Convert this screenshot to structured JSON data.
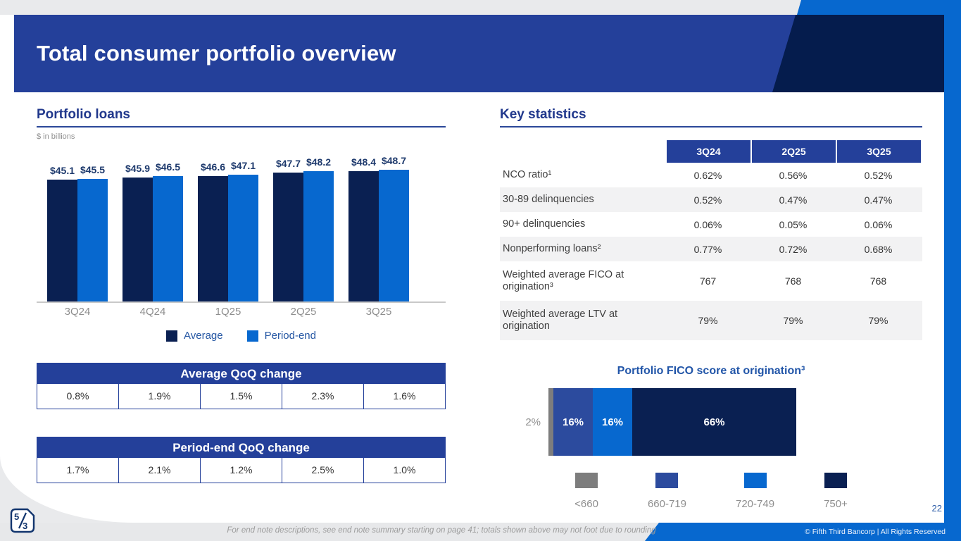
{
  "slide": {
    "title": "Total consumer portfolio overview",
    "page_number": "22"
  },
  "portfolio_loans": {
    "heading": "Portfolio loans",
    "units_note": "$ in billions"
  },
  "key_statistics": {
    "heading": "Key statistics",
    "columns": [
      "3Q24",
      "2Q25",
      "3Q25"
    ],
    "rows": [
      {
        "label": "NCO ratio¹",
        "values": [
          "0.62%",
          "0.56%",
          "0.52%"
        ]
      },
      {
        "label": "30-89 delinquencies",
        "values": [
          "0.52%",
          "0.47%",
          "0.47%"
        ]
      },
      {
        "label": "90+ delinquencies",
        "values": [
          "0.06%",
          "0.05%",
          "0.06%"
        ]
      },
      {
        "label": "Nonperforming loans²",
        "values": [
          "0.77%",
          "0.72%",
          "0.68%"
        ]
      },
      {
        "label": "Weighted average FICO at origination³",
        "values": [
          "767",
          "768",
          "768"
        ]
      },
      {
        "label": "Weighted average LTV at origination",
        "values": [
          "79%",
          "79%",
          "79%"
        ]
      }
    ]
  },
  "qoq_tables": {
    "average": {
      "title": "Average QoQ change",
      "values": [
        "0.8%",
        "1.9%",
        "1.5%",
        "2.3%",
        "1.6%"
      ]
    },
    "period_end": {
      "title": "Period-end QoQ change",
      "values": [
        "1.7%",
        "2.1%",
        "1.2%",
        "2.5%",
        "1.0%"
      ]
    }
  },
  "chart_data": [
    {
      "type": "bar",
      "title": "Portfolio loans",
      "units": "$ in billions",
      "categories": [
        "3Q24",
        "4Q24",
        "1Q25",
        "2Q25",
        "3Q25"
      ],
      "series": [
        {
          "name": "Average",
          "color": "#0A2052",
          "values": [
            45.1,
            45.9,
            46.6,
            47.7,
            48.4
          ]
        },
        {
          "name": "Period-end",
          "color": "#0768CF",
          "values": [
            45.5,
            46.5,
            47.1,
            48.2,
            48.7
          ]
        }
      ],
      "value_prefix": "$",
      "legend_position": "bottom",
      "axis": "none (value labels above bars, baseline only)"
    },
    {
      "type": "stacked-bar",
      "title": "Portfolio FICO score at origination³",
      "unit": "%",
      "segments": [
        {
          "label": "<660",
          "value": 2,
          "color": "#7D7D7D",
          "label_position": "outside"
        },
        {
          "label": "660-719",
          "value": 16,
          "color": "#2C4B9E",
          "label_position": "inside"
        },
        {
          "label": "720-749",
          "value": 16,
          "color": "#0768CF",
          "label_position": "inside"
        },
        {
          "label": "750+",
          "value": 66,
          "color": "#0A2052",
          "label_position": "inside"
        }
      ],
      "legend_position": "bottom"
    }
  ],
  "footer": {
    "note": "For end note descriptions, see end note summary starting on page 41; totals shown above may not foot due to rounding",
    "copyright": "© Fifth Third Bancorp | All Rights Reserved",
    "logo_text": "5/3"
  },
  "colors": {
    "brand_blue": "#24409A",
    "navy": "#0A2052",
    "banner_navy": "#051C4D",
    "bright_blue": "#0768CF",
    "fico_mid_blue": "#2C4B9E",
    "fico_gray": "#7D7D7D",
    "light_gray_bg": "#E9EAEC",
    "row_stripe": "#F2F2F3",
    "heading_blue": "#21388C"
  }
}
